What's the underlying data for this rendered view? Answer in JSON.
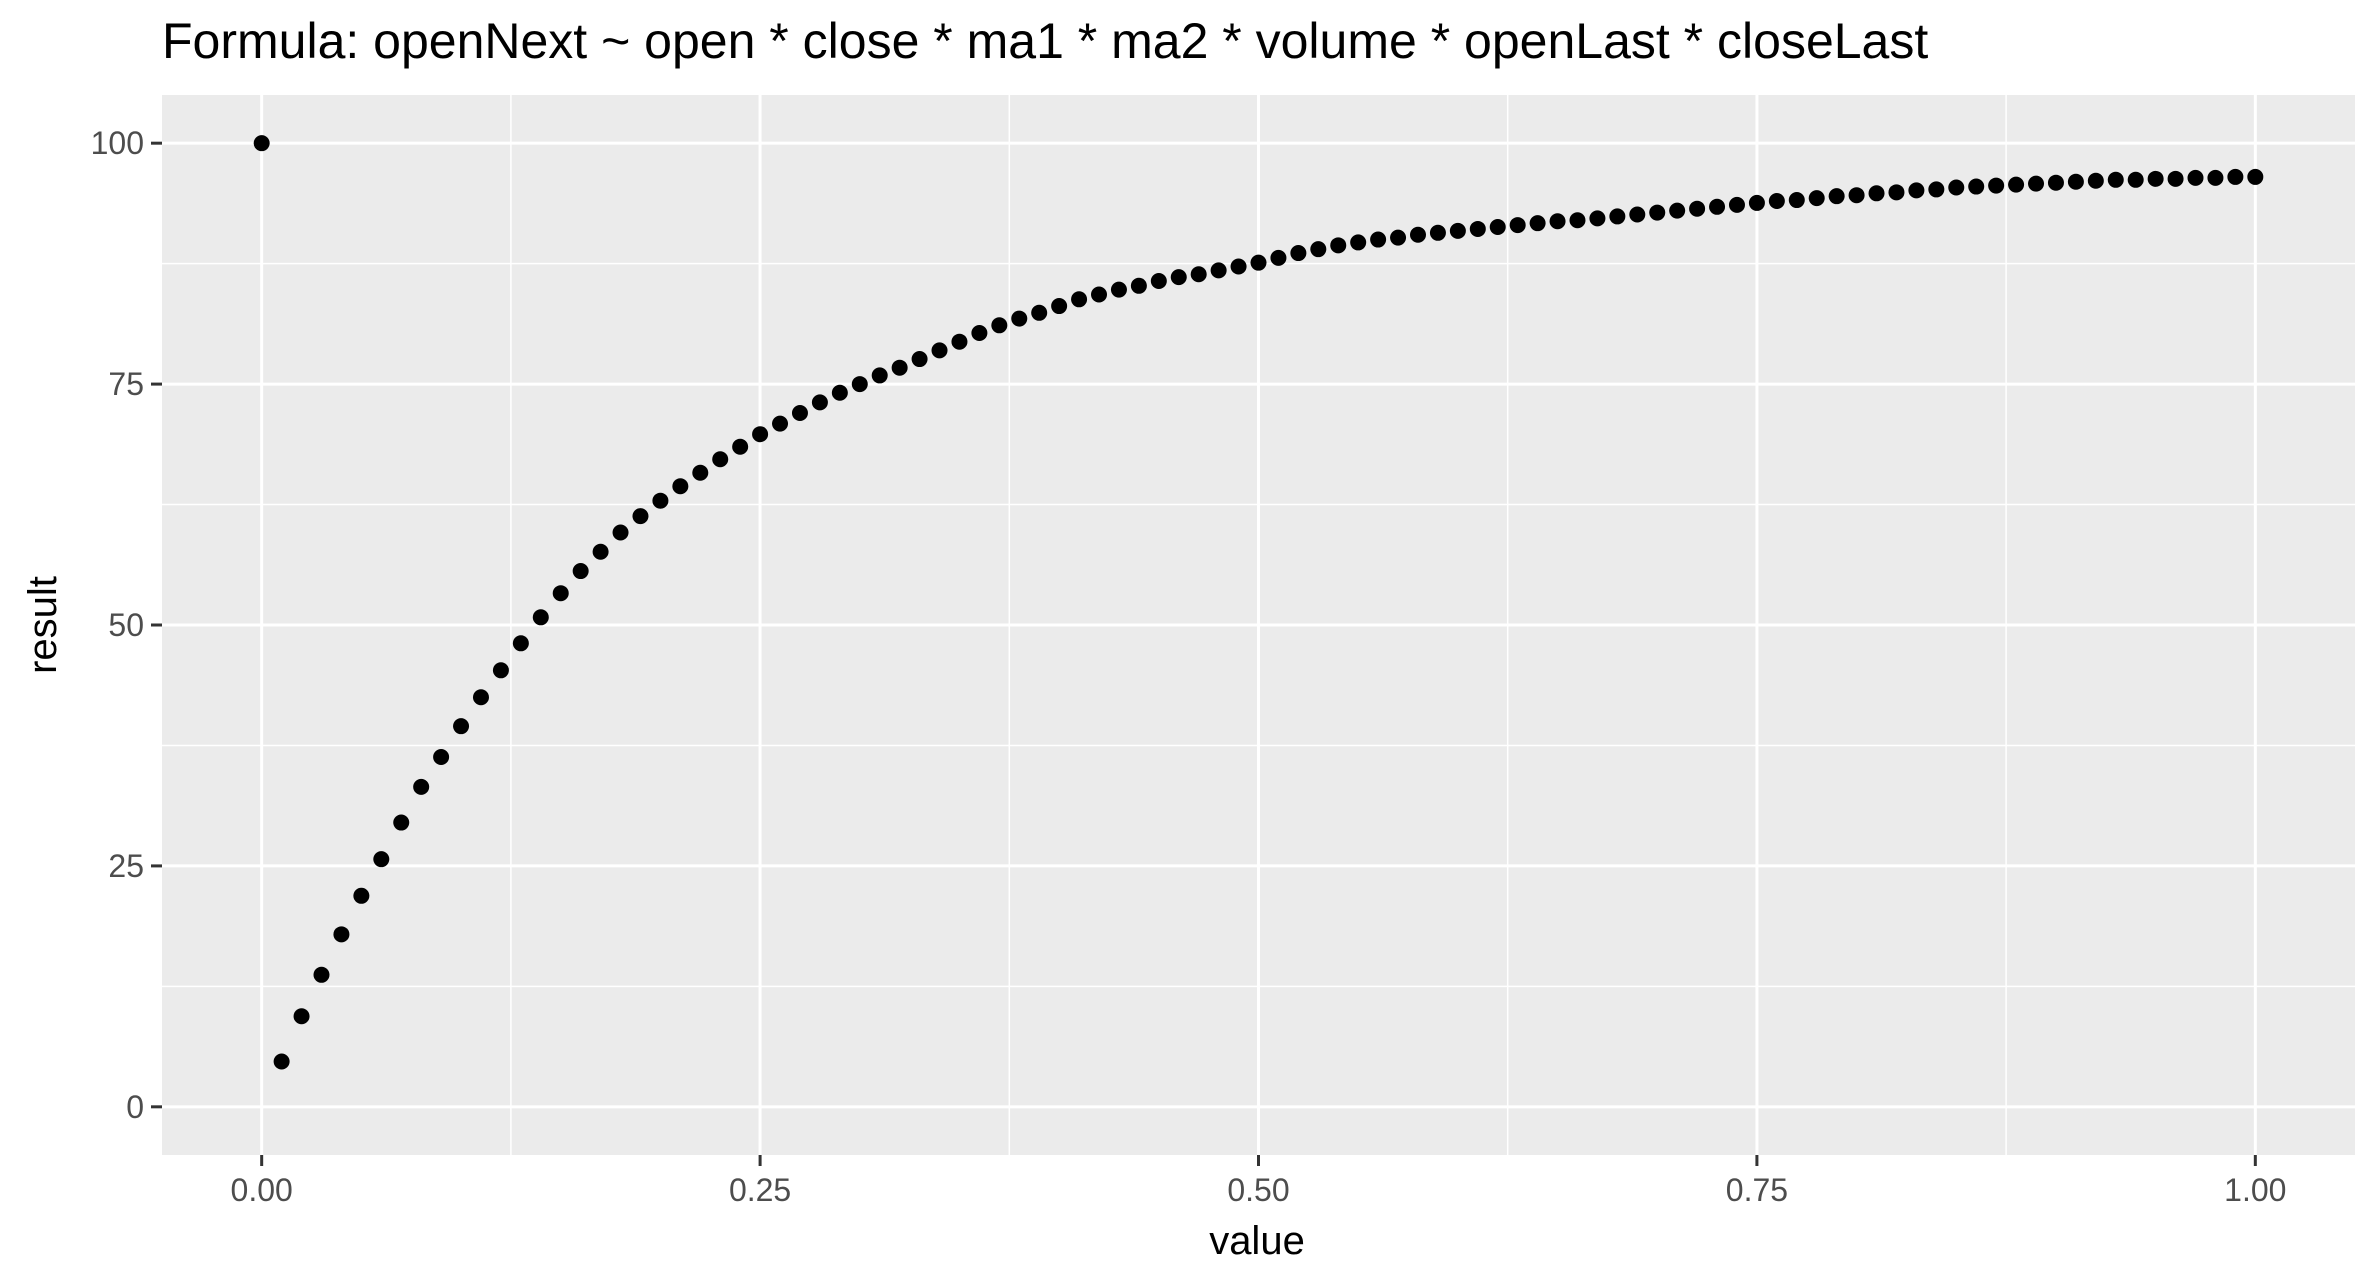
{
  "chart_data": {
    "type": "scatter",
    "title": "Formula:  openNext ~ open * close * ma1 * ma2 * volume * openLast * closeLast",
    "xlabel": "value",
    "ylabel": "result",
    "xlim": [
      -0.05,
      1.05
    ],
    "ylim": [
      -5,
      105
    ],
    "x_ticks": [
      0,
      0.25,
      0.5,
      0.75,
      1
    ],
    "x_tick_labels": [
      "0.00",
      "0.25",
      "0.50",
      "0.75",
      "1.00"
    ],
    "x_minor_ticks": [
      0.125,
      0.375,
      0.625,
      0.875
    ],
    "y_ticks": [
      0,
      25,
      50,
      75,
      100
    ],
    "y_tick_labels": [
      "0",
      "25",
      "50",
      "75",
      "100"
    ],
    "y_minor_ticks": [
      12.5,
      37.5,
      62.5,
      87.5
    ],
    "grid": true,
    "colors": {
      "panel": "#EBEBEB",
      "grid": "#FFFFFF",
      "point": "#000000",
      "tick": "#333333"
    },
    "series": [
      {
        "x": [
          0.0,
          0.01,
          0.02,
          0.03,
          0.04,
          0.05,
          0.06,
          0.07,
          0.08,
          0.09,
          0.1,
          0.11,
          0.12,
          0.13,
          0.14,
          0.15,
          0.16,
          0.17,
          0.18,
          0.19,
          0.2,
          0.21,
          0.22,
          0.23,
          0.24,
          0.25,
          0.26,
          0.27,
          0.28,
          0.29,
          0.3,
          0.31,
          0.32,
          0.33,
          0.34,
          0.35,
          0.36,
          0.37,
          0.38,
          0.39,
          0.4,
          0.41,
          0.42,
          0.43,
          0.44,
          0.45,
          0.46,
          0.47,
          0.48,
          0.49,
          0.5,
          0.51,
          0.52,
          0.53,
          0.54,
          0.55,
          0.56,
          0.57,
          0.58,
          0.59,
          0.6,
          0.61,
          0.62,
          0.63,
          0.64,
          0.65,
          0.66,
          0.67,
          0.68,
          0.69,
          0.7,
          0.71,
          0.72,
          0.73,
          0.74,
          0.75,
          0.76,
          0.77,
          0.78,
          0.79,
          0.8,
          0.81,
          0.82,
          0.83,
          0.84,
          0.85,
          0.86,
          0.87,
          0.88,
          0.89,
          0.9,
          0.91,
          0.92,
          0.93,
          0.94,
          0.95,
          0.96,
          0.97,
          0.98,
          0.99,
          1.0
        ],
        "y": [
          100.0,
          4.7,
          9.4,
          13.7,
          17.9,
          21.9,
          25.7,
          29.5,
          33.2,
          36.3,
          39.5,
          42.5,
          45.3,
          48.1,
          50.8,
          53.3,
          55.6,
          57.6,
          59.6,
          61.3,
          62.9,
          64.4,
          65.8,
          67.2,
          68.5,
          69.8,
          70.9,
          72.0,
          73.1,
          74.1,
          75.0,
          75.9,
          76.7,
          77.6,
          78.5,
          79.4,
          80.3,
          81.1,
          81.8,
          82.4,
          83.1,
          83.8,
          84.3,
          84.8,
          85.2,
          85.7,
          86.1,
          86.4,
          86.8,
          87.2,
          87.6,
          88.1,
          88.6,
          89.0,
          89.4,
          89.7,
          90.0,
          90.2,
          90.5,
          90.7,
          90.9,
          91.1,
          91.3,
          91.5,
          91.7,
          91.9,
          92.0,
          92.2,
          92.4,
          92.6,
          92.8,
          93.0,
          93.2,
          93.4,
          93.6,
          93.8,
          94.0,
          94.1,
          94.3,
          94.5,
          94.6,
          94.8,
          94.9,
          95.1,
          95.2,
          95.4,
          95.5,
          95.6,
          95.7,
          95.8,
          95.9,
          96.0,
          96.1,
          96.2,
          96.2,
          96.3,
          96.3,
          96.4,
          96.4,
          96.5,
          96.5
        ]
      }
    ]
  }
}
